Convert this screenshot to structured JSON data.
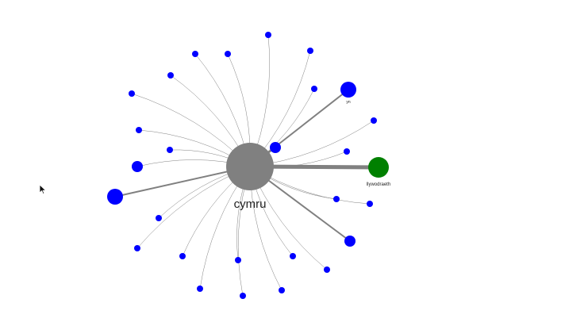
{
  "graph": {
    "center": {
      "label": "cymru",
      "color": "#808080"
    },
    "edge_color": "#808080",
    "nodes": [
      {
        "id": "llywodraeth",
        "label": "llywodraeth",
        "color": "#008000",
        "weight": 3
      },
      {
        "id": "yn",
        "label": "yn",
        "color": "#0000ff",
        "weight": 2
      },
      {
        "id": "big-left",
        "label": "",
        "color": "#0000ff",
        "weight": 2
      },
      {
        "id": "lower-right",
        "label": "",
        "color": "#0000ff",
        "weight": 2
      },
      {
        "id": "near-center",
        "label": "",
        "color": "#0000ff",
        "weight": 2
      },
      {
        "id": "left-mid",
        "label": "",
        "color": "#0000ff",
        "weight": 1
      },
      {
        "id": "n-top",
        "label": "",
        "color": "#0000ff",
        "weight": 1
      },
      {
        "id": "n-top-right",
        "label": "",
        "color": "#0000ff",
        "weight": 1
      },
      {
        "id": "n-right-upper",
        "label": "",
        "color": "#0000ff",
        "weight": 1
      },
      {
        "id": "n-right-2",
        "label": "",
        "color": "#0000ff",
        "weight": 1
      },
      {
        "id": "n-right-3",
        "label": "",
        "color": "#0000ff",
        "weight": 1
      },
      {
        "id": "n-right-4",
        "label": "",
        "color": "#0000ff",
        "weight": 1
      },
      {
        "id": "n-right-5",
        "label": "",
        "color": "#0000ff",
        "weight": 1
      },
      {
        "id": "n-bottom-right-1",
        "label": "",
        "color": "#0000ff",
        "weight": 1
      },
      {
        "id": "n-bottom-right-2",
        "label": "",
        "color": "#0000ff",
        "weight": 1
      },
      {
        "id": "n-bottom-1",
        "label": "",
        "color": "#0000ff",
        "weight": 1
      },
      {
        "id": "n-bottom-2",
        "label": "",
        "color": "#0000ff",
        "weight": 1
      },
      {
        "id": "n-bottom-3",
        "label": "",
        "color": "#0000ff",
        "weight": 1
      },
      {
        "id": "n-bottom-left-1",
        "label": "",
        "color": "#0000ff",
        "weight": 1
      },
      {
        "id": "n-bottom-left-2",
        "label": "",
        "color": "#0000ff",
        "weight": 1
      },
      {
        "id": "n-left-lower",
        "label": "",
        "color": "#0000ff",
        "weight": 1
      },
      {
        "id": "n-left-upper-1",
        "label": "",
        "color": "#0000ff",
        "weight": 1
      },
      {
        "id": "n-left-upper-2",
        "label": "",
        "color": "#0000ff",
        "weight": 1
      },
      {
        "id": "n-left-top-1",
        "label": "",
        "color": "#0000ff",
        "weight": 1
      },
      {
        "id": "n-left-top-2",
        "label": "",
        "color": "#0000ff",
        "weight": 1
      },
      {
        "id": "n-top-left-1",
        "label": "",
        "color": "#0000ff",
        "weight": 1
      },
      {
        "id": "n-top-left-2",
        "label": "",
        "color": "#0000ff",
        "weight": 1
      },
      {
        "id": "n-top-mid",
        "label": "",
        "color": "#0000ff",
        "weight": 1
      }
    ]
  }
}
